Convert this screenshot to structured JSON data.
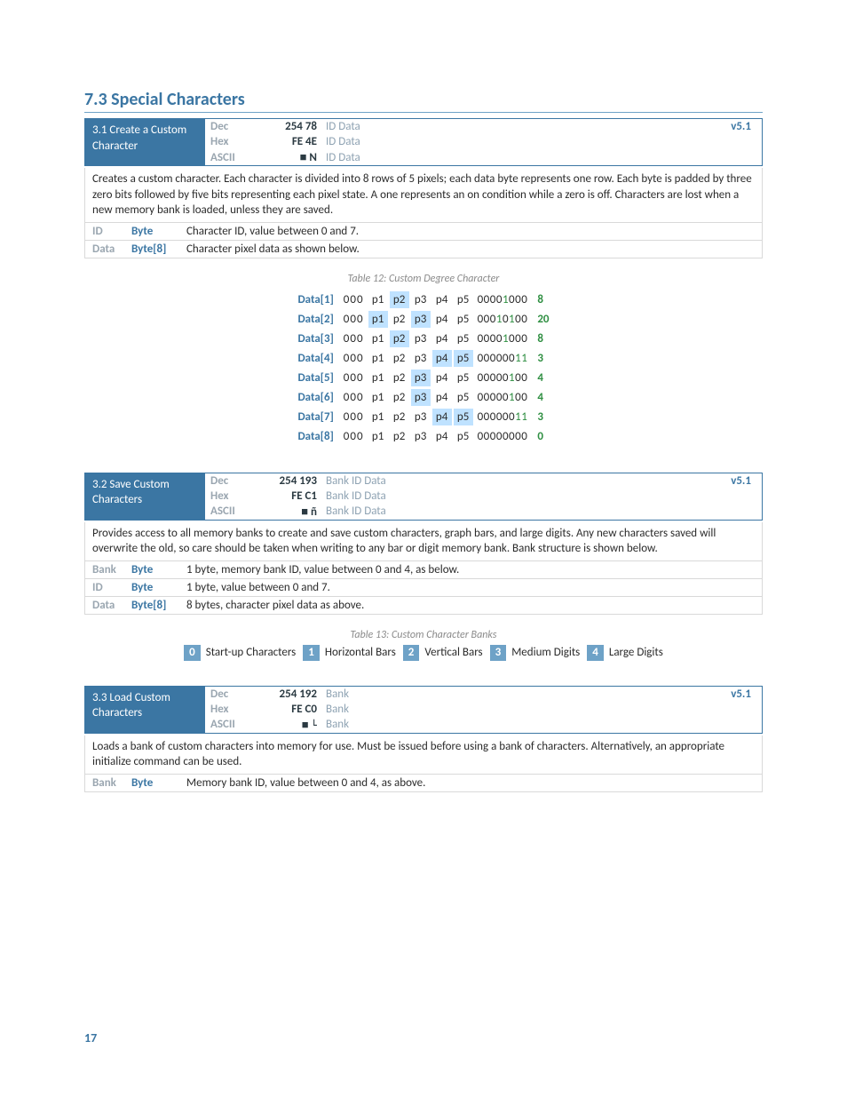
{
  "page_number": "17",
  "section_title": "7.3 Special Characters",
  "cmd31": {
    "title_line1": "3.1 Create a Custom",
    "title_line2": "Character",
    "dec": "254 78",
    "hex": "FE 4E",
    "ascii": "■ N",
    "args": "ID Data",
    "version": "v5.1",
    "desc": "Creates a custom character.  Each character is divided into 8 rows of 5 pixels; each data byte represents one row.  Each byte is padded by three zero bits followed by five bits representing each pixel state.  A one represents an on condition while a zero is off.  Characters are lost when a new memory bank is loaded, unless they are saved.",
    "params": [
      {
        "name": "ID",
        "type": "Byte",
        "desc": "Character ID, value between 0 and 7."
      },
      {
        "name": "Data",
        "type": "Byte[8]",
        "desc": "Character pixel data as shown below."
      }
    ]
  },
  "table12_caption": "Table 12: Custom Degree Character",
  "pixel_rows": [
    {
      "label": "Data[1]",
      "on": [
        0,
        1,
        0,
        0,
        0
      ],
      "bin": "00001000",
      "val": "8"
    },
    {
      "label": "Data[2]",
      "on": [
        1,
        0,
        1,
        0,
        0
      ],
      "bin": "00010100",
      "val": "20"
    },
    {
      "label": "Data[3]",
      "on": [
        0,
        1,
        0,
        0,
        0
      ],
      "bin": "00001000",
      "val": "8"
    },
    {
      "label": "Data[4]",
      "on": [
        0,
        0,
        0,
        1,
        1
      ],
      "bin": "00000011",
      "val": "3"
    },
    {
      "label": "Data[5]",
      "on": [
        0,
        0,
        1,
        0,
        0
      ],
      "bin": "00000100",
      "val": "4"
    },
    {
      "label": "Data[6]",
      "on": [
        0,
        0,
        1,
        0,
        0
      ],
      "bin": "00000100",
      "val": "4"
    },
    {
      "label": "Data[7]",
      "on": [
        0,
        0,
        0,
        1,
        1
      ],
      "bin": "00000011",
      "val": "3"
    },
    {
      "label": "Data[8]",
      "on": [
        0,
        0,
        0,
        0,
        0
      ],
      "bin": "00000000",
      "val": "0"
    }
  ],
  "cmd32": {
    "title_line1": "3.2 Save Custom",
    "title_line2": "Characters",
    "dec": "254 193",
    "hex": "FE C1",
    "ascii": "■ ñ",
    "args": "Bank ID Data",
    "version": "v5.1",
    "desc": "Provides access to all memory banks to create and save custom characters, graph bars, and large digits.  Any new characters saved will overwrite the old, so care should be taken when writing to any bar or digit memory bank.  Bank structure is shown below.",
    "params": [
      {
        "name": "Bank",
        "type": "Byte",
        "desc": "1 byte, memory bank ID, value between 0 and 4, as below."
      },
      {
        "name": "ID",
        "type": "Byte",
        "desc": "1 byte, value between 0 and 7."
      },
      {
        "name": "Data",
        "type": "Byte[8]",
        "desc": "8 bytes, character pixel data as above."
      }
    ]
  },
  "table13_caption": "Table 13: Custom Character Banks",
  "banks": [
    {
      "n": "0",
      "label": "Start-up Characters"
    },
    {
      "n": "1",
      "label": "Horizontal Bars"
    },
    {
      "n": "2",
      "label": "Vertical Bars"
    },
    {
      "n": "3",
      "label": "Medium Digits"
    },
    {
      "n": "4",
      "label": "Large Digits"
    }
  ],
  "cmd33": {
    "title_line1": "3.3 Load Custom",
    "title_line2": "Characters",
    "dec": "254 192",
    "hex": "FE C0",
    "ascii": "■ └",
    "args": "Bank",
    "version": "v5.1",
    "desc": "Loads a bank of custom characters into memory for use.  Must be issued before using a bank of characters.  Alternatively, an appropriate initialize command can be used.",
    "params": [
      {
        "name": "Bank",
        "type": "Byte",
        "desc": "Memory bank ID, value between 0 and 4, as above."
      }
    ]
  }
}
